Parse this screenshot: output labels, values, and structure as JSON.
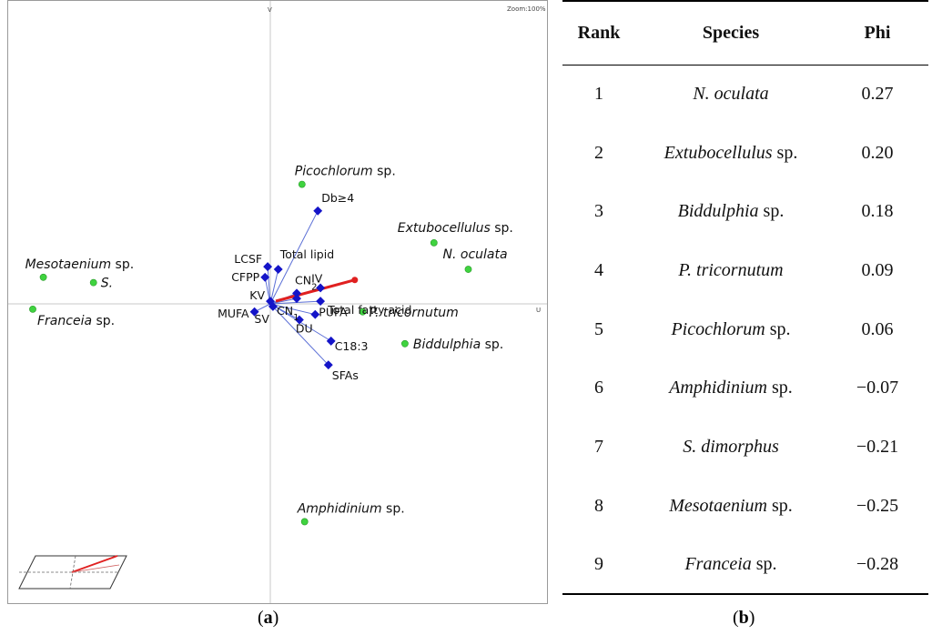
{
  "chart_data": [
    {
      "type": "scatter",
      "title": "",
      "subtitle_label": "(a)",
      "zoom_label": "Zoom:100%",
      "x_axis_label": "U",
      "y_axis_label": "V",
      "xlim": [
        -1,
        1
      ],
      "ylim": [
        -1,
        1
      ],
      "grid": false,
      "species_points": [
        {
          "name": "Picochlorum",
          "suffix": " sp.",
          "x": 0.12,
          "y": 0.45
        },
        {
          "name": "Extubocellulus",
          "suffix": " sp.",
          "x": 0.62,
          "y": 0.23
        },
        {
          "name": "N. oculata",
          "suffix": "",
          "x": 0.75,
          "y": 0.13
        },
        {
          "name": "Mesotaenium",
          "suffix": " sp.",
          "x": -0.86,
          "y": 0.1
        },
        {
          "name": "S.",
          "suffix": "",
          "x": -0.67,
          "y": 0.08
        },
        {
          "name": "Franceia",
          "suffix": " sp.",
          "x": -0.9,
          "y": -0.02
        },
        {
          "name": "P. tricornutum",
          "suffix": "",
          "x": 0.35,
          "y": -0.03
        },
        {
          "name": "Biddulphia",
          "suffix": " sp.",
          "x": 0.51,
          "y": -0.15
        },
        {
          "name": "Amphidinium",
          "suffix": " sp.",
          "x": 0.13,
          "y": -0.82
        }
      ],
      "variable_vectors": [
        {
          "name": "Db",
          "suffix": "≥4",
          "x": 0.18,
          "y": 0.35
        },
        {
          "name": "Total lipid",
          "x": 0.03,
          "y": 0.13
        },
        {
          "name": "LCSF",
          "x": -0.01,
          "y": 0.14
        },
        {
          "name": "CFPP",
          "x": -0.02,
          "y": 0.1
        },
        {
          "name": "CN",
          "sub": "2",
          "x": 0.1,
          "y": 0.04
        },
        {
          "name": "IV",
          "x": 0.19,
          "y": 0.06
        },
        {
          "name": "CN",
          "sub": "1",
          "x": 0.1,
          "y": 0.02
        },
        {
          "name": "Total fatty acid",
          "x": 0.19,
          "y": 0.01
        },
        {
          "name": "KV",
          "x": 0.0,
          "y": 0.01
        },
        {
          "name": "SV",
          "x": 0.01,
          "y": -0.01
        },
        {
          "name": "MUFA",
          "x": -0.06,
          "y": -0.03
        },
        {
          "name": "PUFA",
          "x": 0.17,
          "y": -0.04
        },
        {
          "name": "DU",
          "x": 0.11,
          "y": -0.06
        },
        {
          "name": "C18:3",
          "x": 0.23,
          "y": -0.14
        },
        {
          "name": "SFAs",
          "x": 0.22,
          "y": -0.23
        }
      ],
      "red_vector": {
        "x": 0.32,
        "y": 0.09
      }
    },
    {
      "type": "table",
      "subtitle_label": "(b)",
      "columns": [
        "Rank",
        "Species",
        "Phi"
      ],
      "rows": [
        {
          "rank": "1",
          "species": "N. oculata",
          "suffix": "",
          "phi": "0.27"
        },
        {
          "rank": "2",
          "species": "Extubocellulus",
          "suffix": " sp.",
          "phi": "0.20"
        },
        {
          "rank": "3",
          "species": "Biddulphia",
          "suffix": " sp.",
          "phi": "0.18"
        },
        {
          "rank": "4",
          "species": "P. tricornutum",
          "suffix": "",
          "phi": "0.09"
        },
        {
          "rank": "5",
          "species": "Picochlorum",
          "suffix": " sp.",
          "phi": "0.06"
        },
        {
          "rank": "6",
          "species": "Amphidinium",
          "suffix": " sp.",
          "phi": "−0.07"
        },
        {
          "rank": "7",
          "species": "S. dimorphus",
          "suffix": "",
          "phi": "−0.21"
        },
        {
          "rank": "8",
          "species": "Mesotaenium",
          "suffix": " sp.",
          "phi": "−0.25"
        },
        {
          "rank": "9",
          "species": "Franceia",
          "suffix": " sp.",
          "phi": "−0.28"
        }
      ]
    }
  ],
  "colors": {
    "species_point": "#3fd33f",
    "variable_marker": "#1414c8",
    "variable_line": "#5b6fd6",
    "red_vector": "#e02020",
    "axis": "#c8c8c8"
  }
}
